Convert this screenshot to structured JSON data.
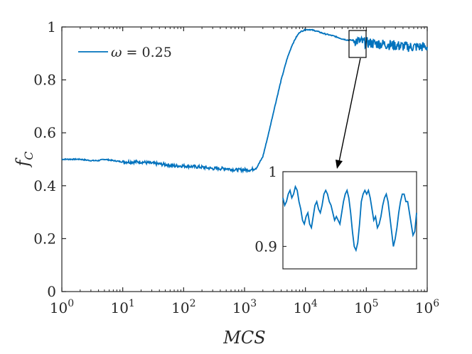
{
  "chart_data": {
    "type": "line",
    "xscale": "log",
    "xlabel": "MCS",
    "ylabel": "f",
    "ylabel_sub": "C",
    "xlim": [
      1,
      1000000
    ],
    "ylim": [
      0,
      1
    ],
    "x_ticks": [
      {
        "value": 1,
        "base": "10",
        "exp": "0"
      },
      {
        "value": 10,
        "base": "10",
        "exp": "1"
      },
      {
        "value": 100,
        "base": "10",
        "exp": "2"
      },
      {
        "value": 1000,
        "base": "10",
        "exp": "3"
      },
      {
        "value": 10000,
        "base": "10",
        "exp": "4"
      },
      {
        "value": 100000,
        "base": "10",
        "exp": "5"
      },
      {
        "value": 1000000,
        "base": "10",
        "exp": "6"
      }
    ],
    "y_ticks": [
      {
        "value": 0,
        "label": "0"
      },
      {
        "value": 0.2,
        "label": "0.2"
      },
      {
        "value": 0.4,
        "label": "0.4"
      },
      {
        "value": 0.6,
        "label": "0.6"
      },
      {
        "value": 0.8,
        "label": "0.8"
      },
      {
        "value": 1,
        "label": "1"
      }
    ],
    "legend": {
      "position": "top-left",
      "symbol": "ω",
      "text": " = 0.25"
    },
    "series": [
      {
        "name": "ω = 0.25",
        "color": "#0072BD",
        "x": [
          1,
          2,
          3,
          4,
          5,
          7,
          10,
          20,
          30,
          50,
          70,
          100,
          200,
          300,
          500,
          700,
          1000,
          1300,
          1600,
          2000,
          2500,
          3000,
          4000,
          5000,
          6000,
          7000,
          8000,
          10000,
          12000,
          15000,
          20000,
          30000,
          40000,
          50000,
          60000,
          80000,
          100000,
          200000,
          300000,
          500000,
          700000,
          1000000
        ],
        "y": [
          0.5,
          0.5,
          0.495,
          0.495,
          0.5,
          0.495,
          0.49,
          0.49,
          0.485,
          0.48,
          0.475,
          0.475,
          0.47,
          0.465,
          0.465,
          0.46,
          0.46,
          0.46,
          0.47,
          0.51,
          0.6,
          0.68,
          0.8,
          0.88,
          0.93,
          0.96,
          0.98,
          0.99,
          0.99,
          0.985,
          0.975,
          0.965,
          0.955,
          0.95,
          0.95,
          0.945,
          0.94,
          0.935,
          0.93,
          0.925,
          0.925,
          0.925
        ]
      }
    ],
    "inset": {
      "box_range": {
        "x": [
          60000,
          100000
        ],
        "y": [
          0.88,
          1.0
        ]
      },
      "ylim": [
        0.87,
        1.0
      ],
      "y_ticks": [
        {
          "value": 0.9,
          "label": "0.9"
        },
        {
          "value": 1,
          "label": "1"
        }
      ],
      "values": [
        0.965,
        0.955,
        0.96,
        0.97,
        0.975,
        0.965,
        0.97,
        0.98,
        0.975,
        0.96,
        0.95,
        0.935,
        0.93,
        0.94,
        0.945,
        0.93,
        0.925,
        0.94,
        0.955,
        0.96,
        0.95,
        0.945,
        0.955,
        0.97,
        0.975,
        0.97,
        0.96,
        0.955,
        0.945,
        0.935,
        0.94,
        0.935,
        0.93,
        0.945,
        0.96,
        0.97,
        0.975,
        0.965,
        0.945,
        0.92,
        0.9,
        0.895,
        0.905,
        0.93,
        0.96,
        0.97,
        0.975,
        0.97,
        0.975,
        0.965,
        0.95,
        0.935,
        0.94,
        0.925,
        0.93,
        0.94,
        0.955,
        0.965,
        0.97,
        0.96,
        0.94,
        0.92,
        0.9,
        0.91,
        0.925,
        0.945,
        0.96,
        0.97,
        0.97,
        0.96,
        0.96,
        0.945,
        0.93,
        0.915,
        0.92,
        0.945
      ]
    }
  }
}
